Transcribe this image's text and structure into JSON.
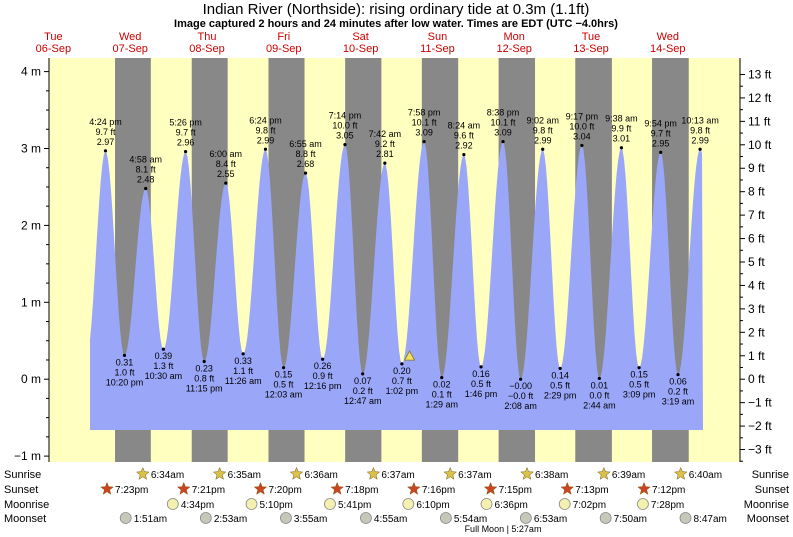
{
  "chart_data": {
    "type": "area",
    "title": "Indian River (Northside): rising  ordinary tide at 0.3m (1.1ft)",
    "subtitle": "Image captured 2 hours and 24 minutes after low water. Times are EDT (UTC −4.0hrs)",
    "left_axis": {
      "unit": "m",
      "ticks": [
        {
          "v": -1,
          "label": "−1 m"
        },
        {
          "v": 0,
          "label": "0 m"
        },
        {
          "v": 1,
          "label": "1 m"
        },
        {
          "v": 2,
          "label": "2 m"
        },
        {
          "v": 3,
          "label": "3 m"
        },
        {
          "v": 4,
          "label": "4 m"
        }
      ]
    },
    "right_axis": {
      "unit": "ft",
      "ticks": [
        {
          "v": -3,
          "label": "−3 ft"
        },
        {
          "v": -2,
          "label": "−2 ft"
        },
        {
          "v": -1,
          "label": "−1 ft"
        },
        {
          "v": 0,
          "label": "0 ft"
        },
        {
          "v": 1,
          "label": "1 ft"
        },
        {
          "v": 2,
          "label": "2 ft"
        },
        {
          "v": 3,
          "label": "3 ft"
        },
        {
          "v": 4,
          "label": "4 ft"
        },
        {
          "v": 5,
          "label": "5 ft"
        },
        {
          "v": 6,
          "label": "6 ft"
        },
        {
          "v": 7,
          "label": "7 ft"
        },
        {
          "v": 8,
          "label": "8 ft"
        },
        {
          "v": 9,
          "label": "9 ft"
        },
        {
          "v": 10,
          "label": "10 ft"
        },
        {
          "v": 11,
          "label": "11 ft"
        },
        {
          "v": 12,
          "label": "12 ft"
        },
        {
          "v": 13,
          "label": "13 ft"
        }
      ]
    },
    "days": [
      {
        "name": "Tue",
        "date": "06-Sep"
      },
      {
        "name": "Wed",
        "date": "07-Sep"
      },
      {
        "name": "Thu",
        "date": "08-Sep"
      },
      {
        "name": "Fri",
        "date": "09-Sep"
      },
      {
        "name": "Sat",
        "date": "10-Sep"
      },
      {
        "name": "Sun",
        "date": "11-Sep"
      },
      {
        "name": "Mon",
        "date": "12-Sep"
      },
      {
        "name": "Tue",
        "date": "13-Sep"
      },
      {
        "name": "Wed",
        "date": "14-Sep"
      }
    ],
    "tides": [
      {
        "type": "high",
        "time": "4:24 pm",
        "ft": "9.7 ft",
        "m": 2.97,
        "m_label": "2.97 m"
      },
      {
        "type": "low",
        "time": "10:20 pm",
        "ft": "1.0 ft",
        "m": 0.31,
        "m_label": "0.31 m"
      },
      {
        "type": "high",
        "time": "4:58 am",
        "ft": "8.1 ft",
        "m": 2.48,
        "m_label": "2.48 m"
      },
      {
        "type": "low",
        "time": "10:30 am",
        "ft": "1.3 ft",
        "m": 0.39,
        "m_label": "0.39 m"
      },
      {
        "type": "high",
        "time": "5:26 pm",
        "ft": "9.7 ft",
        "m": 2.96,
        "m_label": "2.96 m"
      },
      {
        "type": "low",
        "time": "11:15 pm",
        "ft": "0.8 ft",
        "m": 0.23,
        "m_label": "0.23 m"
      },
      {
        "type": "high",
        "time": "6:00 am",
        "ft": "8.4 ft",
        "m": 2.55,
        "m_label": "2.55 m"
      },
      {
        "type": "low",
        "time": "11:26 am",
        "ft": "1.1 ft",
        "m": 0.33,
        "m_label": "0.33 m"
      },
      {
        "type": "high",
        "time": "6:24 pm",
        "ft": "9.8 ft",
        "m": 2.99,
        "m_label": "2.99 m"
      },
      {
        "type": "low",
        "time": "12:03 am",
        "ft": "0.5 ft",
        "m": 0.15,
        "m_label": "0.15 m"
      },
      {
        "type": "high",
        "time": "6:55 am",
        "ft": "8.8 ft",
        "m": 2.68,
        "m_label": "2.68 m"
      },
      {
        "type": "low",
        "time": "12:16 pm",
        "ft": "0.9 ft",
        "m": 0.26,
        "m_label": "0.26 m"
      },
      {
        "type": "high",
        "time": "7:14 pm",
        "ft": "10.0 ft",
        "m": 3.05,
        "m_label": "3.05 m"
      },
      {
        "type": "low",
        "time": "12:47 am",
        "ft": "0.2 ft",
        "m": 0.07,
        "m_label": "0.07 m"
      },
      {
        "type": "high",
        "time": "7:42 am",
        "ft": "9.2 ft",
        "m": 2.81,
        "m_label": "2.81 m"
      },
      {
        "type": "low",
        "time": "1:02 pm",
        "ft": "0.7 ft",
        "m": 0.2,
        "m_label": "0.20 m"
      },
      {
        "type": "high",
        "time": "7:58 pm",
        "ft": "10.1 ft",
        "m": 3.09,
        "m_label": "3.09 m"
      },
      {
        "type": "low",
        "time": "1:29 am",
        "ft": "0.1 ft",
        "m": 0.02,
        "m_label": "0.02 m"
      },
      {
        "type": "high",
        "time": "8:24 am",
        "ft": "9.6 ft",
        "m": 2.92,
        "m_label": "2.92 m"
      },
      {
        "type": "low",
        "time": "1:46 pm",
        "ft": "0.5 ft",
        "m": 0.16,
        "m_label": "0.16 m"
      },
      {
        "type": "high",
        "time": "8:38 pm",
        "ft": "10.1 ft",
        "m": 3.09,
        "m_label": "3.09 m"
      },
      {
        "type": "low",
        "time": "2:08 am",
        "ft": "−0.0 ft",
        "m": -0.0,
        "m_label": "−0.00 m"
      },
      {
        "type": "high",
        "time": "9:02 am",
        "ft": "9.8 ft",
        "m": 2.99,
        "m_label": "2.99 m"
      },
      {
        "type": "low",
        "time": "2:29 pm",
        "ft": "0.5 ft",
        "m": 0.14,
        "m_label": "0.14 m"
      },
      {
        "type": "high",
        "time": "9:17 pm",
        "ft": "10.0 ft",
        "m": 3.04,
        "m_label": "3.04 m"
      },
      {
        "type": "low",
        "time": "2:44 am",
        "ft": "0.0 ft",
        "m": 0.01,
        "m_label": "0.01 m"
      },
      {
        "type": "high",
        "time": "9:38 am",
        "ft": "9.9 ft",
        "m": 3.01,
        "m_label": "3.01 m"
      },
      {
        "type": "low",
        "time": "3:09 pm",
        "ft": "0.5 ft",
        "m": 0.15,
        "m_label": "0.15 m"
      },
      {
        "type": "high",
        "time": "9:54 pm",
        "ft": "9.7 ft",
        "m": 2.95,
        "m_label": "2.95 m"
      },
      {
        "type": "low",
        "time": "3:19 am",
        "ft": "0.2 ft",
        "m": 0.06,
        "m_label": "0.06 m"
      },
      {
        "type": "high",
        "time": "10:13 am",
        "ft": "9.8 ft",
        "m": 2.99,
        "m_label": "2.99 m"
      }
    ],
    "current_level_m": 0.3,
    "row_labels": {
      "sunrise": "Sunrise",
      "sunset": "Sunset",
      "moonrise": "Moonrise",
      "moonset": "Moonset"
    },
    "sunrise": [
      "6:34am",
      "6:35am",
      "6:36am",
      "6:37am",
      "6:37am",
      "6:38am",
      "6:39am",
      "6:40am"
    ],
    "sunset": [
      "7:23pm",
      "7:21pm",
      "7:20pm",
      "7:18pm",
      "7:16pm",
      "7:15pm",
      "7:13pm",
      "7:12pm"
    ],
    "moonrise": [
      "4:34pm",
      "5:10pm",
      "5:41pm",
      "6:10pm",
      "6:36pm",
      "7:02pm",
      "7:28pm"
    ],
    "moonset": [
      "1:51am",
      "2:53am",
      "3:55am",
      "4:55am",
      "5:54am",
      "6:53am",
      "7:50am",
      "8:47am"
    ],
    "moon_phase": "Full Moon | 5:27am",
    "colors": {
      "day": "#ffffc0",
      "night": "#888888",
      "water": "#9aa6f8",
      "sunrise_star": "#d8c24a",
      "sunset_star": "#cc4422",
      "moon": "#f4f0b0",
      "day_label": "#cc0000"
    }
  }
}
